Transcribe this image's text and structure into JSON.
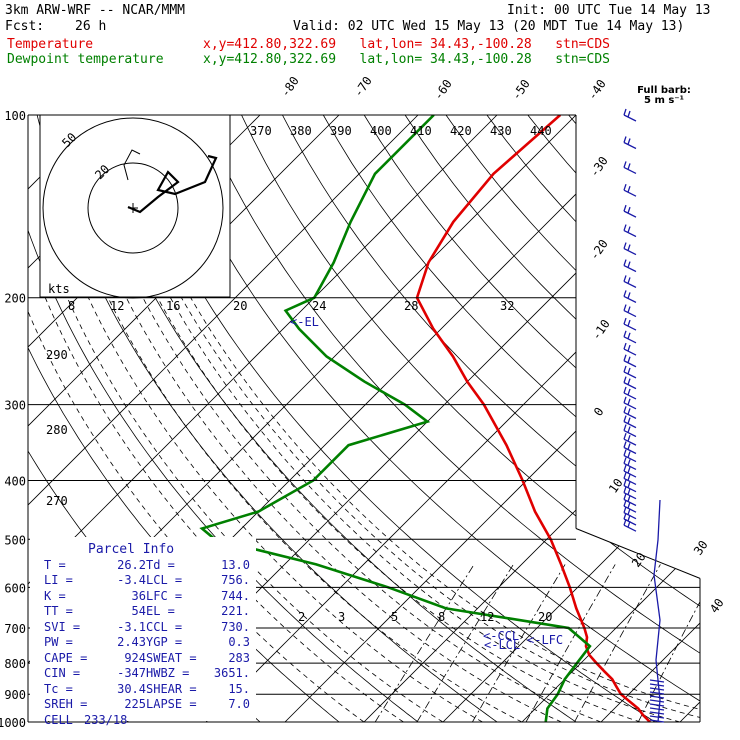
{
  "header": {
    "model": "3km ARW-WRF -- NCAR/MMM",
    "init": "Init: 00 UTC Tue 14 May 13",
    "fcst_label": "Fcst:",
    "fcst_value": "26 h",
    "valid": "Valid: 02 UTC Wed 15 May 13 (20 MDT Tue 14 May 13)",
    "temp_label": "Temperature",
    "temp_info": "x,y=412.80,322.69   lat,lon= 34.43,-100.28   stn=CDS",
    "dew_label": "Dewpoint temperature",
    "dew_info": "x,y=412.80,322.69   lat,lon= 34.43,-100.28   stn=CDS"
  },
  "barb_label": {
    "line1": "Full barb:",
    "line2": "5 m s⁻¹"
  },
  "colors": {
    "temperature": "#e00000",
    "dewpoint": "#008000",
    "parcel_text": "#1a1aa8",
    "axes": "#000000",
    "barbs": "#1a1aa8"
  },
  "parcel_info": {
    "title": "Parcel Info",
    "rows": [
      [
        [
          "T",
          "26.2"
        ],
        [
          "Td",
          "13.0"
        ]
      ],
      [
        [
          "LI",
          "-3.4"
        ],
        [
          "LCL",
          "756."
        ]
      ],
      [
        [
          "K",
          "36"
        ],
        [
          "LFC",
          "744."
        ]
      ],
      [
        [
          "TT",
          "54"
        ],
        [
          "EL",
          "221."
        ]
      ],
      [
        [
          "SVI",
          "-3.1"
        ],
        [
          "CCL",
          "730."
        ]
      ],
      [
        [
          "PW",
          "2.43"
        ],
        [
          "YGP",
          "0.3"
        ]
      ],
      [
        [
          "CAPE",
          "924"
        ],
        [
          "SWEAT",
          "283"
        ]
      ],
      [
        [
          "CIN",
          "-347"
        ],
        [
          "HWBZ",
          "3651."
        ]
      ],
      [
        [
          "Tc",
          "30.4"
        ],
        [
          "SHEAR",
          "15."
        ]
      ],
      [
        [
          "SREH",
          "225"
        ],
        [
          "LAPSE",
          "7.0"
        ]
      ],
      [
        [
          "CELL",
          "233/18"
        ]
      ]
    ]
  },
  "level_markers": [
    "<-EL",
    "<-CCL",
    "<-LFC",
    "<-LCL"
  ],
  "chart_data": {
    "type": "line",
    "diagram": "skew-T log-p",
    "y_axis": {
      "scale": "log",
      "ticks": [
        100,
        200,
        300,
        400,
        500,
        600,
        700,
        800,
        900,
        1000
      ]
    },
    "isotherm_labels": [
      "-80",
      "-70",
      "-60",
      "-50",
      "-40",
      "-30",
      "-20",
      "-10",
      "0",
      "10",
      "20",
      "30",
      "40"
    ],
    "dry_adiabat_labels_upper": [
      "370",
      "380",
      "390",
      "400",
      "410",
      "420",
      "430",
      "440"
    ],
    "dry_adiabat_labels_left": [
      "290",
      "280",
      "270"
    ],
    "mixing_ratio_labels_upper": [
      "8",
      "12",
      "16",
      "20",
      "24",
      "28",
      "32"
    ],
    "mixing_ratio_labels_lower": [
      "2",
      "3",
      "5",
      "8",
      "12",
      "20"
    ],
    "series": [
      {
        "name": "Temperature",
        "points": [
          [
            1000,
            26.2
          ],
          [
            975,
            24.5
          ],
          [
            950,
            23
          ],
          [
            925,
            21
          ],
          [
            900,
            19
          ],
          [
            875,
            17.5
          ],
          [
            850,
            16
          ],
          [
            825,
            14
          ],
          [
            800,
            12
          ],
          [
            775,
            10
          ],
          [
            750,
            8.5
          ],
          [
            725,
            7.5
          ],
          [
            700,
            6
          ],
          [
            650,
            2.5
          ],
          [
            600,
            -1
          ],
          [
            550,
            -5
          ],
          [
            500,
            -9.5
          ],
          [
            450,
            -15
          ],
          [
            400,
            -20.5
          ],
          [
            350,
            -27
          ],
          [
            300,
            -35
          ],
          [
            275,
            -40
          ],
          [
            250,
            -45
          ],
          [
            225,
            -51
          ],
          [
            200,
            -57
          ],
          [
            175,
            -60
          ],
          [
            150,
            -62
          ],
          [
            125,
            -63
          ],
          [
            100,
            -62
          ]
        ]
      },
      {
        "name": "Dewpoint temperature",
        "points": [
          [
            1000,
            13
          ],
          [
            950,
            11.5
          ],
          [
            900,
            11
          ],
          [
            850,
            10
          ],
          [
            800,
            9.5
          ],
          [
            750,
            9
          ],
          [
            700,
            4
          ],
          [
            680,
            -3
          ],
          [
            650,
            -14
          ],
          [
            600,
            -24
          ],
          [
            550,
            -36
          ],
          [
            500,
            -52
          ],
          [
            480,
            -55
          ],
          [
            450,
            -50
          ],
          [
            400,
            -47
          ],
          [
            350,
            -47
          ],
          [
            320,
            -40
          ],
          [
            300,
            -45
          ],
          [
            275,
            -53
          ],
          [
            250,
            -61
          ],
          [
            225,
            -68
          ],
          [
            210,
            -72
          ],
          [
            200,
            -70
          ],
          [
            175,
            -72
          ],
          [
            150,
            -75
          ],
          [
            125,
            -78
          ],
          [
            100,
            -78
          ]
        ]
      }
    ],
    "hodograph": {
      "ring_labels": [
        "20",
        "50"
      ],
      "units": "kts"
    }
  }
}
